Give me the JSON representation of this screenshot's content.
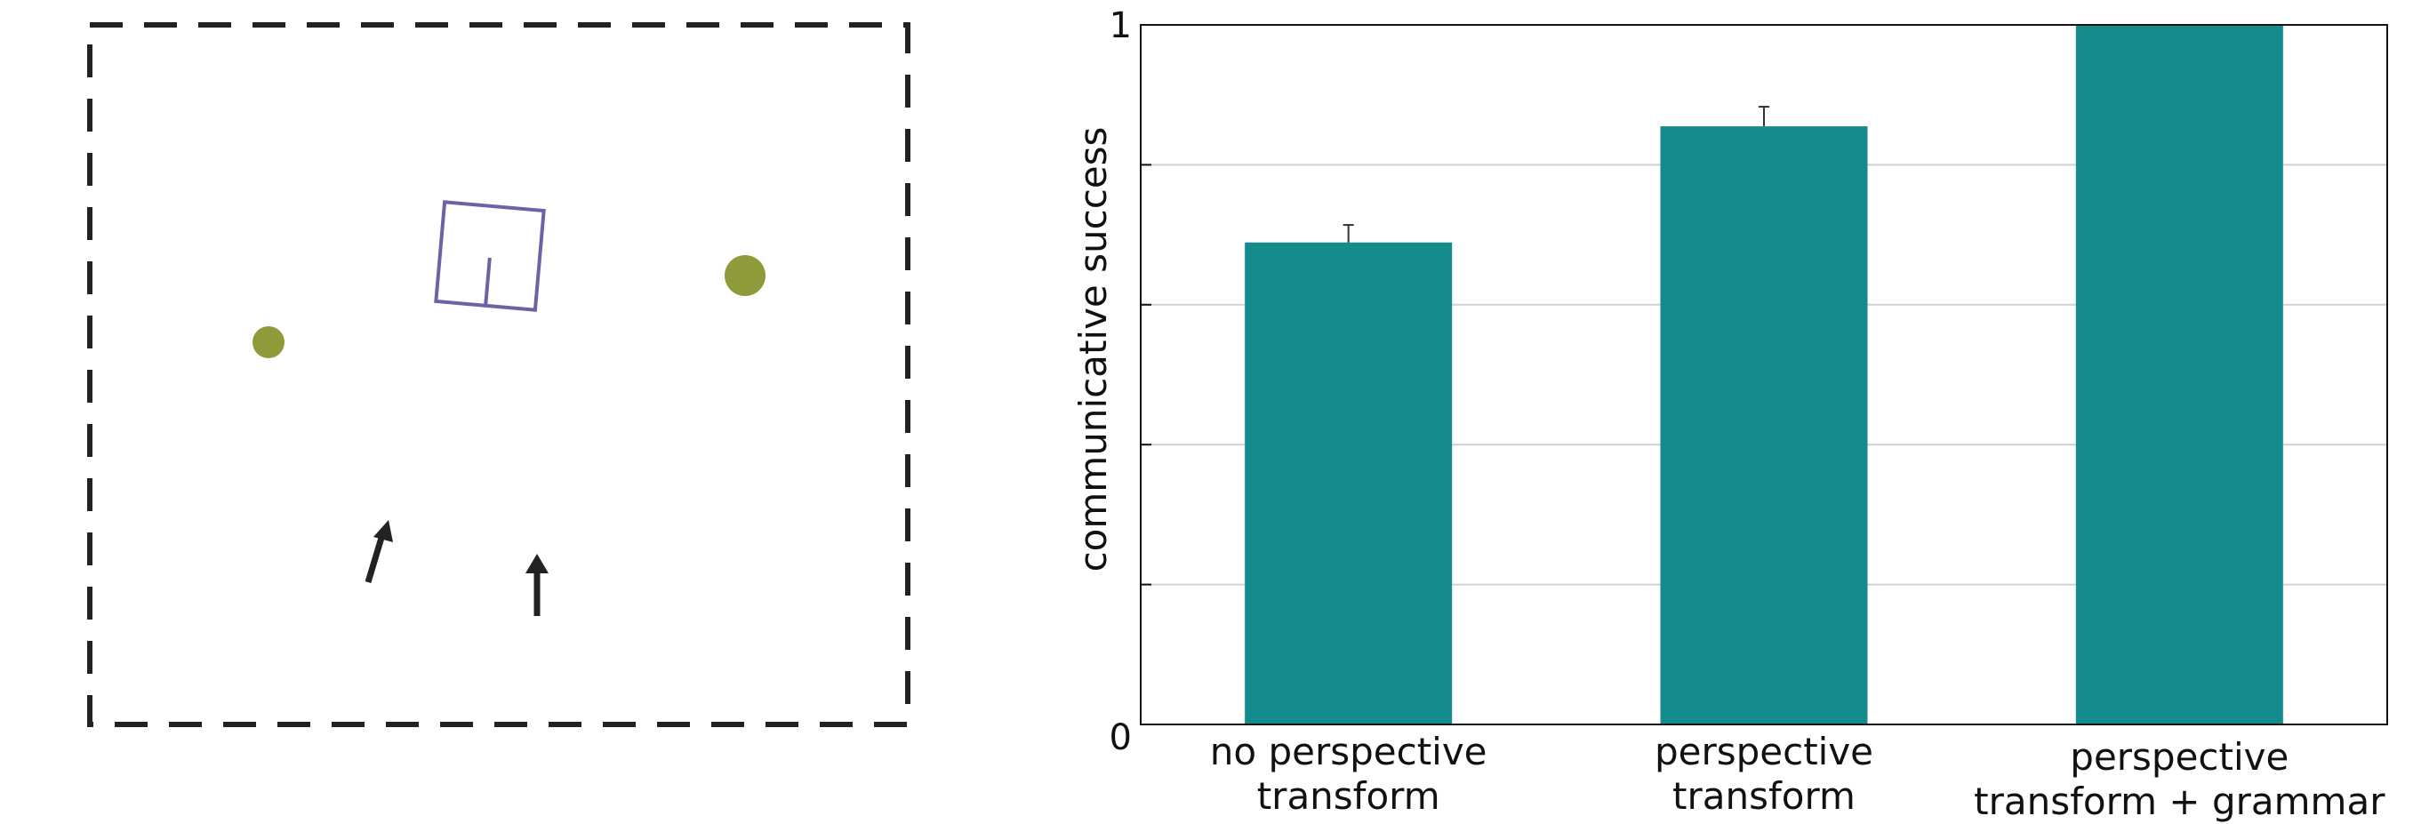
{
  "scene": {
    "border_color": "#222222",
    "object_color": "#8f9a3a",
    "box_color": "#6b63a3",
    "arrow_color": "#222222"
  },
  "chart_data": {
    "type": "bar",
    "title": "",
    "xlabel": "",
    "ylabel": "communicative success",
    "ylim": [
      0,
      1
    ],
    "ytick_labels": [
      "0",
      "1"
    ],
    "yticks_minor": [
      0.2,
      0.4,
      0.6,
      0.8
    ],
    "grid": true,
    "categories": [
      [
        "no perspective",
        "transform"
      ],
      [
        "perspective",
        "transform"
      ],
      [
        "perspective",
        "transform + grammar"
      ]
    ],
    "values": [
      0.689,
      0.855,
      1.0
    ],
    "error": [
      0.025,
      0.028,
      0.0
    ],
    "bar_color": "#148b8c"
  }
}
